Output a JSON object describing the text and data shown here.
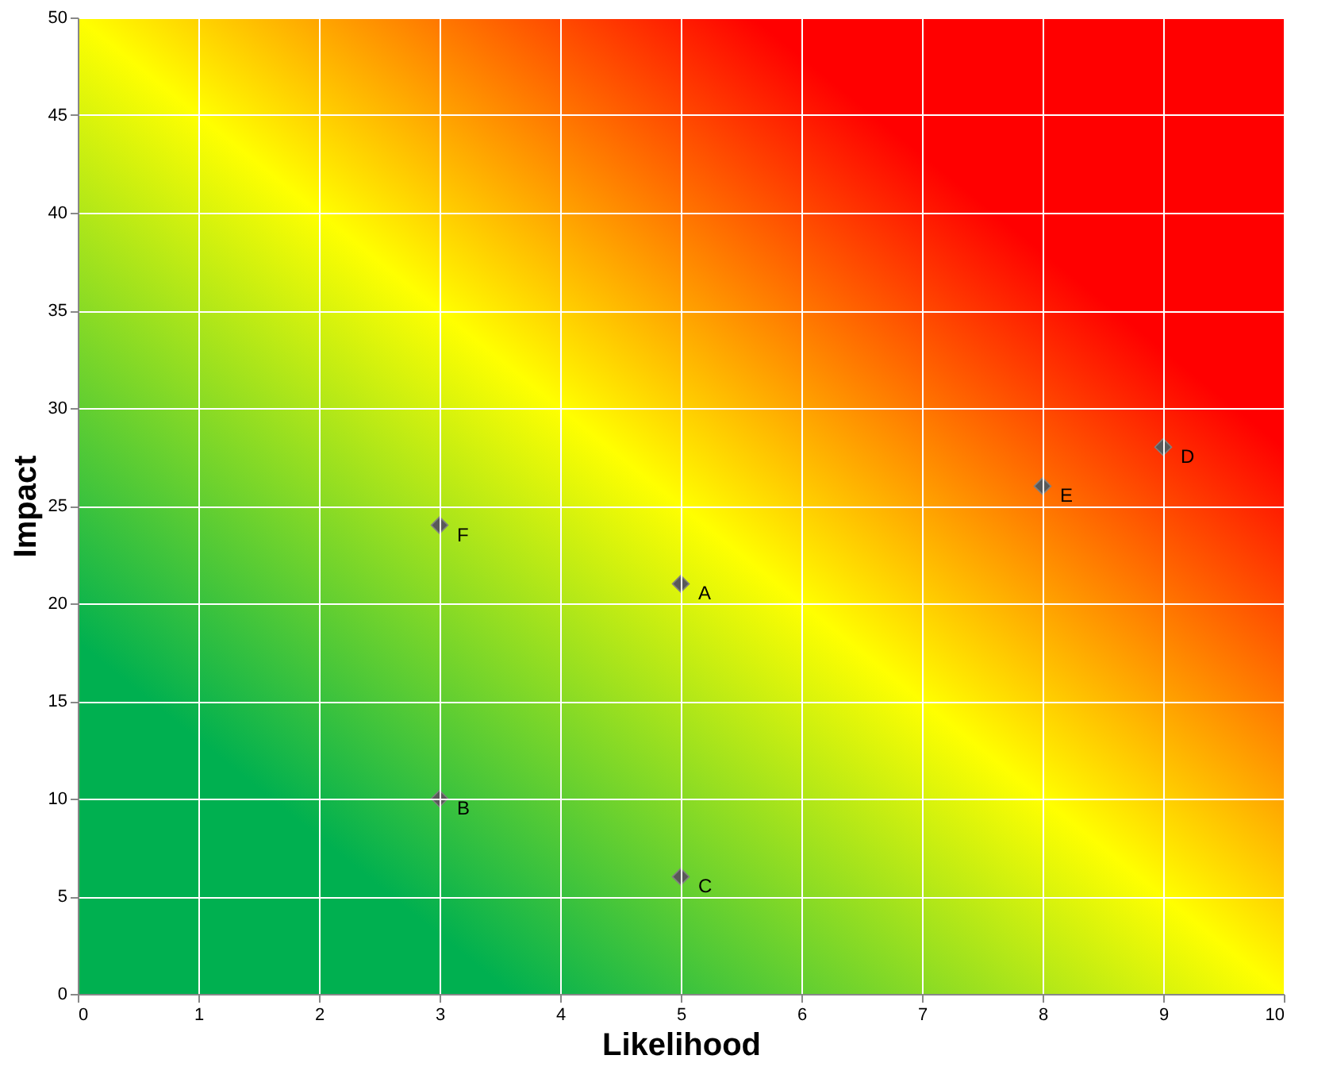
{
  "chart_data": {
    "type": "scatter",
    "xlabel": "Likelihood",
    "ylabel": "Impact",
    "series": [
      {
        "color": "#595959",
        "x": [
          5,
          3,
          5,
          9,
          8,
          3
        ],
        "values": [
          21,
          10,
          6,
          28,
          26,
          24
        ]
      }
    ],
    "marker": "diamond",
    "annotations": [
      {
        "text": "A",
        "x": 5,
        "y": 21
      },
      {
        "text": "B",
        "x": 3,
        "y": 10
      },
      {
        "text": "C",
        "x": 5,
        "y": 6
      },
      {
        "text": "D",
        "x": 9,
        "y": 28
      },
      {
        "text": "E",
        "x": 8,
        "y": 26
      },
      {
        "text": "F",
        "x": 3,
        "y": 24
      }
    ],
    "xlim": [
      0,
      10
    ],
    "xticks": [
      0,
      1,
      2,
      3,
      4,
      5,
      6,
      7,
      8,
      9,
      10
    ],
    "ylim": [
      0,
      50
    ],
    "yticks": [
      0,
      5,
      10,
      15,
      20,
      25,
      30,
      35,
      40,
      45,
      50
    ],
    "grid": true
  }
}
